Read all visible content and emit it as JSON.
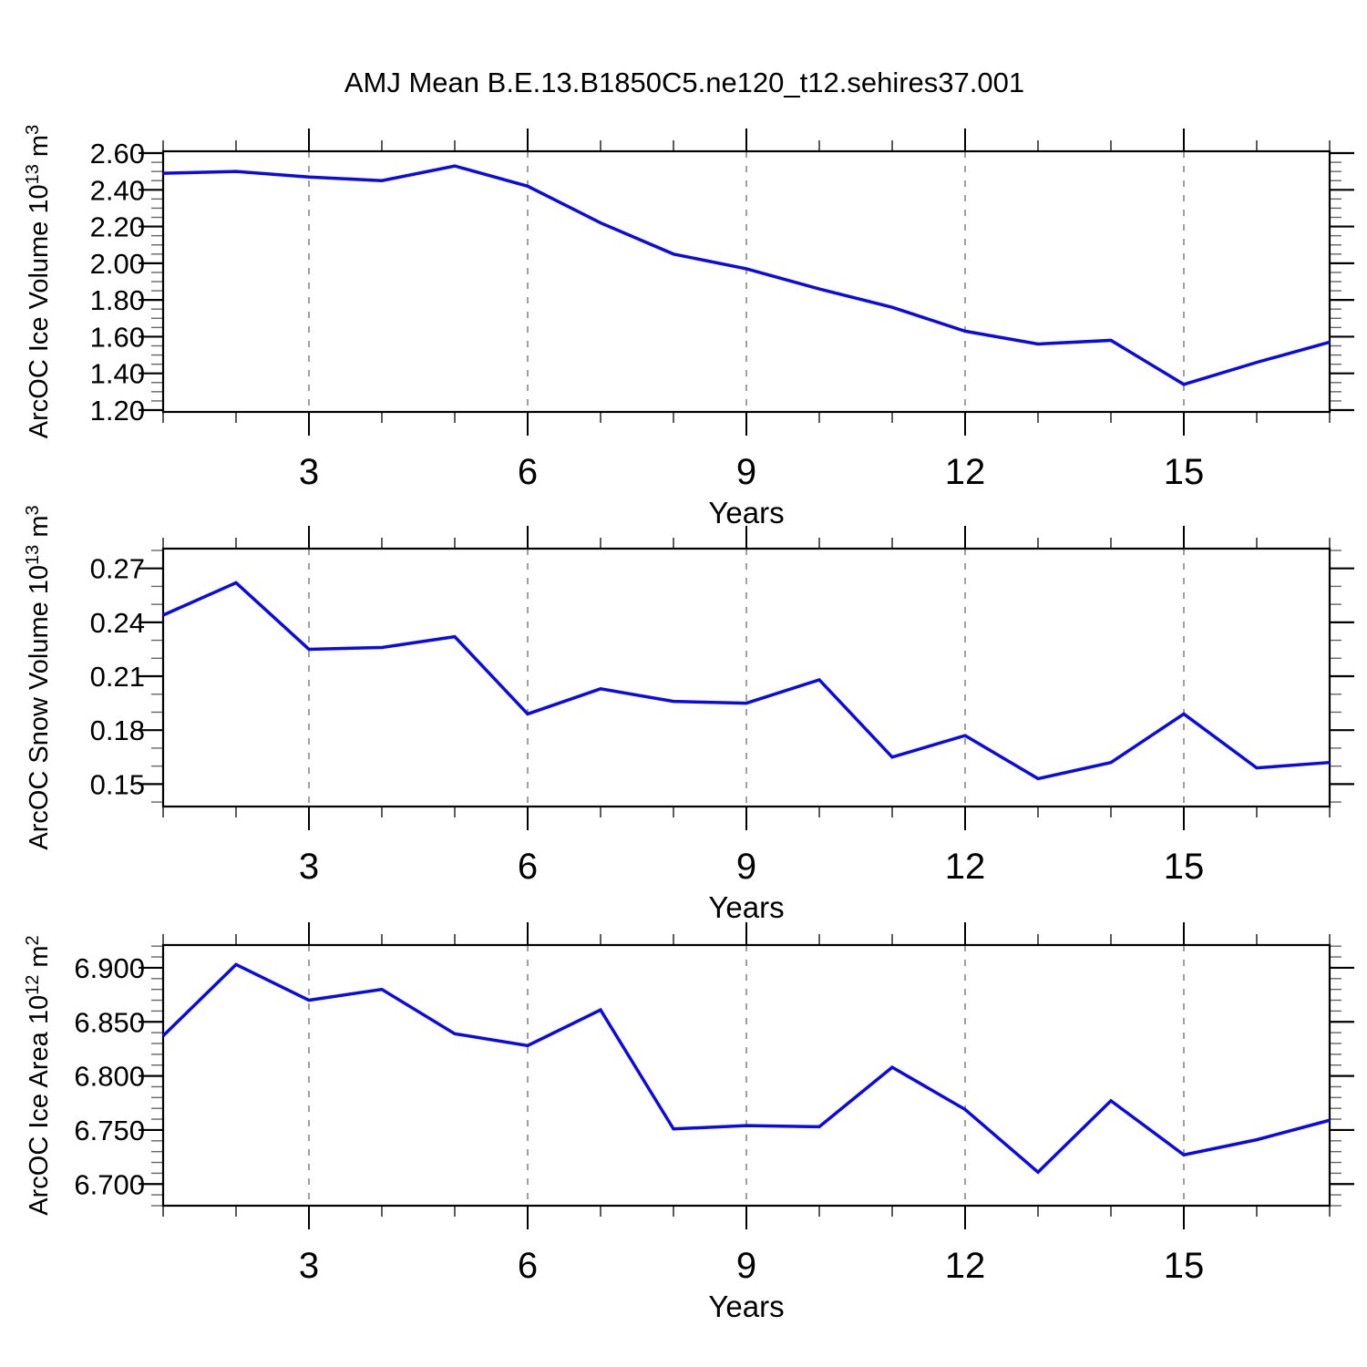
{
  "title": "AMJ Mean B.E.13.B1850C5.ne120_t12.sehires37.001",
  "colors": {
    "line": "#0a0ae6",
    "axis": "#000000",
    "minor_tick": "#555555",
    "grid_dash": "#808080",
    "background": "#ffffff",
    "text": "#000000"
  },
  "chart_data": [
    {
      "type": "line",
      "name": "ice-volume",
      "ylabel": "ArcOC Ice Volume 10¹³ m³",
      "ylabel_parts": {
        "base": "ArcOC Ice Volume 10",
        "exp": "13",
        "unit": "m",
        "unit_exp": "3"
      },
      "xlabel": "Years",
      "x": [
        1,
        2,
        3,
        4,
        5,
        6,
        7,
        8,
        9,
        10,
        11,
        12,
        13,
        14,
        15,
        16,
        17
      ],
      "values": [
        2.49,
        2.5,
        2.47,
        2.45,
        2.53,
        2.42,
        2.22,
        2.05,
        1.97,
        1.86,
        1.76,
        1.63,
        1.56,
        1.58,
        1.34,
        1.46,
        1.57
      ],
      "xlim": [
        1,
        17
      ],
      "xticks_major": [
        3,
        6,
        9,
        12,
        15
      ],
      "xtick_minor_step": 1,
      "ylim": [
        1.19,
        2.61
      ],
      "ytick_values": [
        2.6,
        2.4,
        2.2,
        2.0,
        1.8,
        1.6,
        1.4,
        1.2
      ],
      "ytick_labels": [
        "2.60",
        "2.40",
        "2.20",
        "2.00",
        "1.80",
        "1.60",
        "1.40",
        "1.20"
      ],
      "ytick_minor_step": 0.05,
      "grid": "vertical dashed at major x ticks",
      "legend": "none"
    },
    {
      "type": "line",
      "name": "snow-volume",
      "ylabel": "ArcOC Snow Volume 10¹³ m³",
      "ylabel_parts": {
        "base": "ArcOC Snow Volume 10",
        "exp": "13",
        "unit": "m",
        "unit_exp": "3"
      },
      "xlabel": "Years",
      "x": [
        1,
        2,
        3,
        4,
        5,
        6,
        7,
        8,
        9,
        10,
        11,
        12,
        13,
        14,
        15,
        16,
        17
      ],
      "values": [
        0.244,
        0.262,
        0.225,
        0.226,
        0.232,
        0.189,
        0.203,
        0.196,
        0.195,
        0.208,
        0.165,
        0.177,
        0.153,
        0.162,
        0.189,
        0.159,
        0.162
      ],
      "xlim": [
        1,
        17
      ],
      "xticks_major": [
        3,
        6,
        9,
        12,
        15
      ],
      "xtick_minor_step": 1,
      "ylim": [
        0.1375,
        0.281
      ],
      "ytick_values": [
        0.27,
        0.24,
        0.21,
        0.18,
        0.15
      ],
      "ytick_labels": [
        "0.27",
        "0.24",
        "0.21",
        "0.18",
        "0.15"
      ],
      "ytick_minor_step": 0.01,
      "grid": "vertical dashed at major x ticks",
      "legend": "none"
    },
    {
      "type": "line",
      "name": "ice-area",
      "ylabel": "ArcOC Ice Area 10¹² m²",
      "ylabel_parts": {
        "base": "ArcOC Ice Area 10",
        "exp": "12",
        "unit": "m",
        "unit_exp": "2"
      },
      "xlabel": "Years",
      "x": [
        1,
        2,
        3,
        4,
        5,
        6,
        7,
        8,
        9,
        10,
        11,
        12,
        13,
        14,
        15,
        16,
        17
      ],
      "values": [
        6.837,
        6.903,
        6.87,
        6.88,
        6.839,
        6.828,
        6.861,
        6.751,
        6.754,
        6.753,
        6.808,
        6.769,
        6.711,
        6.777,
        6.727,
        6.741,
        6.759
      ],
      "xlim": [
        1,
        17
      ],
      "xticks_major": [
        3,
        6,
        9,
        12,
        15
      ],
      "xtick_minor_step": 1,
      "ylim": [
        6.68,
        6.921
      ],
      "ytick_values": [
        6.9,
        6.85,
        6.8,
        6.75,
        6.7
      ],
      "ytick_labels": [
        "6.900",
        "6.850",
        "6.800",
        "6.750",
        "6.700"
      ],
      "ytick_minor_step": 0.01,
      "grid": "vertical dashed at major x ticks",
      "legend": "none"
    }
  ]
}
